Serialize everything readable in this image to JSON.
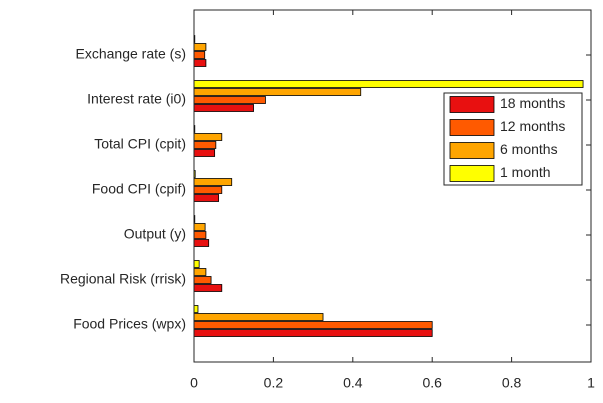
{
  "chart_data": {
    "type": "barh",
    "categories": [
      "Exchange rate (s)",
      "Interest rate (i0)",
      "Total CPI (cpit)",
      "Food CPI (cpif)",
      "Output (y)",
      "Regional Risk (rrisk)",
      "Food Prices (wpx)"
    ],
    "series": [
      {
        "name": "18 months",
        "color": "#e81010",
        "values": [
          0.03,
          0.15,
          0.052,
          0.062,
          0.037,
          0.07,
          0.6
        ]
      },
      {
        "name": "12 months",
        "color": "#ff5a00",
        "values": [
          0.027,
          0.18,
          0.055,
          0.07,
          0.03,
          0.043,
          0.6
        ]
      },
      {
        "name": "6 months",
        "color": "#ffa500",
        "values": [
          0.03,
          0.42,
          0.07,
          0.095,
          0.028,
          0.03,
          0.325
        ]
      },
      {
        "name": "1 month",
        "color": "#ffff00",
        "values": [
          0.002,
          0.98,
          0.002,
          0.003,
          0.002,
          0.013,
          0.01
        ]
      }
    ],
    "xlim": [
      0,
      1
    ],
    "xticks": [
      0,
      0.2,
      0.4,
      0.6,
      0.8,
      1
    ],
    "legend": "east"
  }
}
